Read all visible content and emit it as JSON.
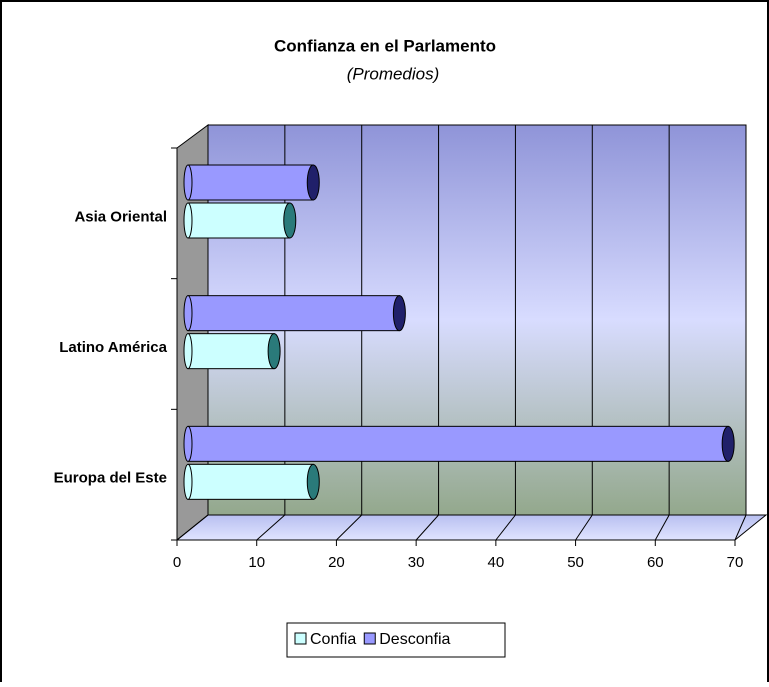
{
  "chart_data": {
    "type": "bar",
    "orientation": "horizontal",
    "title": "Confianza en el Parlamento",
    "subtitle": "(Promedios)",
    "categories": [
      "Asia Oriental",
      "Latino América",
      "Europa del Este"
    ],
    "series": [
      {
        "name": "Confia",
        "color": "#ccffff",
        "values": [
          13,
          11,
          16
        ]
      },
      {
        "name": "Desconfia",
        "color": "#9999ff",
        "values": [
          16,
          27,
          69
        ]
      }
    ],
    "xlim": [
      0,
      70
    ],
    "xticks": [
      0,
      10,
      20,
      30,
      40,
      50,
      60,
      70
    ],
    "grid": true,
    "legend": "bottom"
  }
}
